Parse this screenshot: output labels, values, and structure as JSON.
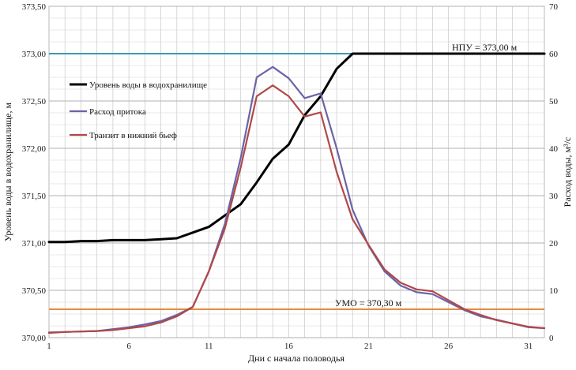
{
  "chart_data": {
    "type": "line",
    "xlabel": "Дни с начала половодья",
    "ylabel_left": "Уровень воды в водохранилище, м",
    "ylabel_right": "Расход воды, м³/с",
    "xlim": [
      1,
      32
    ],
    "ylim_left": [
      370.0,
      373.5
    ],
    "ylim_right": [
      0,
      70
    ],
    "x_ticks": [
      "1",
      "6",
      "11",
      "16",
      "21",
      "26",
      "31"
    ],
    "x_tick_values": [
      1,
      6,
      11,
      16,
      21,
      26,
      31
    ],
    "y_left_ticks": [
      "370,00",
      "370,50",
      "371,00",
      "371,50",
      "372,00",
      "372,50",
      "373,00",
      "373,50"
    ],
    "y_left_tick_values": [
      370.0,
      370.5,
      371.0,
      371.5,
      372.0,
      372.5,
      373.0,
      373.5
    ],
    "y_right_ticks": [
      "0",
      "10",
      "20",
      "30",
      "40",
      "50",
      "60",
      "70"
    ],
    "y_right_tick_values": [
      0,
      10,
      20,
      30,
      40,
      50,
      60,
      70
    ],
    "grid": true,
    "legend_position": "top-left",
    "series": [
      {
        "name": "Уровень воды в водохранилище",
        "axis": "left",
        "color": "#000000",
        "x": [
          1,
          2,
          3,
          4,
          5,
          6,
          7,
          8,
          9,
          10,
          11,
          12,
          13,
          14,
          15,
          16,
          17,
          18,
          19,
          20,
          21,
          22,
          23,
          24,
          25,
          26,
          27,
          28,
          29,
          30,
          31,
          32
        ],
        "values": [
          371.01,
          371.01,
          371.02,
          371.02,
          371.03,
          371.03,
          371.03,
          371.04,
          371.05,
          371.11,
          371.17,
          371.29,
          371.41,
          371.64,
          371.89,
          372.04,
          372.35,
          372.55,
          372.84,
          373.0,
          373.0,
          373.0,
          373.0,
          373.0,
          373.0,
          373.0,
          373.0,
          373.0,
          373.0,
          373.0,
          373.0,
          373.0
        ]
      },
      {
        "name": "Расход притока",
        "axis": "right",
        "color": "#6a63a8",
        "x": [
          1,
          2,
          3,
          4,
          5,
          6,
          7,
          8,
          9,
          10,
          11,
          12,
          13,
          14,
          15,
          16,
          17,
          18,
          19,
          20,
          21,
          22,
          23,
          24,
          25,
          26,
          27,
          28,
          29,
          30,
          31,
          32
        ],
        "values": [
          1.1,
          1.2,
          1.3,
          1.4,
          1.8,
          2.2,
          2.8,
          3.5,
          4.8,
          6.5,
          14.0,
          24.0,
          38.0,
          55.0,
          57.2,
          54.8,
          50.6,
          51.6,
          40.0,
          27.0,
          19.4,
          14.0,
          11.0,
          9.6,
          9.2,
          7.5,
          5.8,
          4.5,
          3.8,
          3.0,
          2.2,
          2.0
        ]
      },
      {
        "name": "Транзит в нижний бьеф",
        "axis": "right",
        "color": "#b04848",
        "x": [
          1,
          2,
          3,
          4,
          5,
          6,
          7,
          8,
          9,
          10,
          11,
          12,
          13,
          14,
          15,
          16,
          17,
          18,
          19,
          20,
          21,
          22,
          23,
          24,
          25,
          26,
          27,
          28,
          29,
          30,
          31,
          32
        ],
        "values": [
          1.0,
          1.2,
          1.3,
          1.4,
          1.6,
          2.0,
          2.4,
          3.2,
          4.5,
          6.5,
          14.0,
          23.0,
          36.0,
          51.0,
          53.3,
          51.0,
          46.7,
          47.6,
          35.0,
          25.0,
          19.6,
          14.4,
          11.6,
          10.2,
          9.8,
          7.9,
          6.0,
          4.8,
          3.7,
          3.0,
          2.3,
          2.0
        ]
      }
    ],
    "reference_lines": [
      {
        "label": "НПУ = 373,00 м",
        "axis": "left",
        "value": 373.0,
        "color": "#3a9ab8"
      },
      {
        "label": "УМО = 370,30 м",
        "axis": "left",
        "value": 370.3,
        "color": "#e88a3a"
      }
    ]
  }
}
